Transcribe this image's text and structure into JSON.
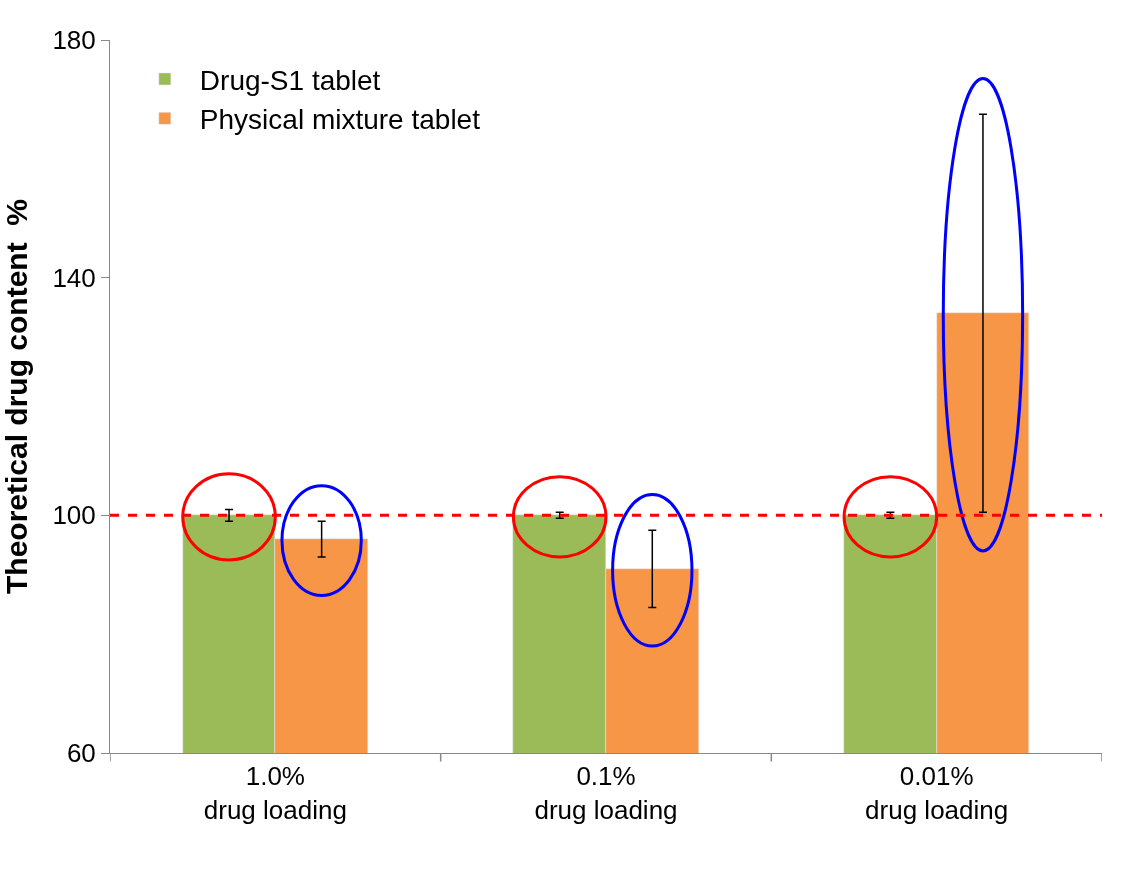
{
  "chart_data": {
    "type": "bar",
    "ylabel": "Theoretical drug content  %",
    "categories": [
      "1.0%\ndrug loading",
      "0.1%\ndrug loading",
      "0.01%\ndrug loading"
    ],
    "series": [
      {
        "name": "Drug-S1 tablet",
        "color": "#9bbb59",
        "values": [
          100,
          100,
          100
        ],
        "errors": [
          1,
          0.5,
          0.5
        ]
      },
      {
        "name": "Physical mixture tablet",
        "color": "#f79646",
        "values": [
          96,
          91,
          134
        ],
        "errors": [
          3,
          6.5,
          33.5
        ]
      }
    ],
    "ylim": [
      60,
      180
    ],
    "yticks": [
      60,
      100,
      140,
      180
    ],
    "legend": "top left",
    "ref_lines": [
      {
        "axis": "y",
        "value": 100,
        "color": "#ff0000",
        "line_style": "dashed"
      }
    ]
  }
}
